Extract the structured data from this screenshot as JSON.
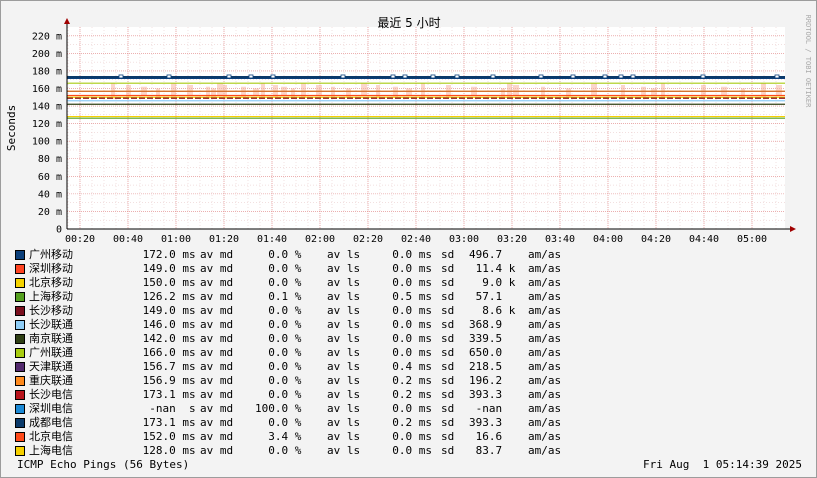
{
  "chart_data": {
    "type": "line",
    "title": "最近 5 小时",
    "ylabel": "Seconds",
    "watermark": "RRDTOOL / TOBI OETIKER",
    "ylim": [
      0,
      230
    ],
    "y_ticks": [
      {
        "v": 0,
        "label": "0"
      },
      {
        "v": 20,
        "label": "20 m"
      },
      {
        "v": 40,
        "label": "40 m"
      },
      {
        "v": 60,
        "label": "60 m"
      },
      {
        "v": 80,
        "label": "80 m"
      },
      {
        "v": 100,
        "label": "100 m"
      },
      {
        "v": 120,
        "label": "120 m"
      },
      {
        "v": 140,
        "label": "140 m"
      },
      {
        "v": 160,
        "label": "160 m"
      },
      {
        "v": 180,
        "label": "180 m"
      },
      {
        "v": 200,
        "label": "200 m"
      },
      {
        "v": 220,
        "label": "220 m"
      }
    ],
    "x_ticks": [
      "00:20",
      "00:40",
      "01:00",
      "01:20",
      "01:40",
      "02:00",
      "02:20",
      "02:40",
      "03:00",
      "03:20",
      "03:40",
      "04:00",
      "04:20",
      "04:40",
      "05:00"
    ],
    "series": [
      {
        "name": "广州移动",
        "color": "#0b3f7a",
        "value": 172.0,
        "value_str": "172.0 ms",
        "loss": "0.0 %",
        "sd": "0.0 ms",
        "am": "496.7  "
      },
      {
        "name": "深圳移动",
        "color": "#ff4422",
        "value": 149.0,
        "value_str": "149.0 ms",
        "loss": "0.0 %",
        "sd": "0.0 ms",
        "am": " 11.4 k"
      },
      {
        "name": "北京移动",
        "color": "#f5d300",
        "value": 150.0,
        "value_str": "150.0 ms",
        "loss": "0.0 %",
        "sd": "0.0 ms",
        "am": "  9.0 k"
      },
      {
        "name": "上海移动",
        "color": "#55a020",
        "value": 126.2,
        "value_str": "126.2 ms",
        "loss": "0.1 %",
        "sd": "0.5 ms",
        "am": " 57.1  "
      },
      {
        "name": "长沙移动",
        "color": "#7a0f1e",
        "value": 149.0,
        "value_str": "149.0 ms",
        "loss": "0.0 %",
        "sd": "0.0 ms",
        "am": "  8.6 k"
      },
      {
        "name": "长沙联通",
        "color": "#8fcdf6",
        "value": 146.0,
        "value_str": "146.0 ms",
        "loss": "0.0 %",
        "sd": "0.0 ms",
        "am": "368.9  "
      },
      {
        "name": "南京联通",
        "color": "#2f3f14",
        "value": 142.0,
        "value_str": "142.0 ms",
        "loss": "0.0 %",
        "sd": "0.0 ms",
        "am": "339.5  "
      },
      {
        "name": "广州联通",
        "color": "#a8cc10",
        "value": 166.0,
        "value_str": "166.0 ms",
        "loss": "0.0 %",
        "sd": "0.0 ms",
        "am": "650.0  "
      },
      {
        "name": "天津联通",
        "color": "#532a6e",
        "value": 156.7,
        "value_str": "156.7 ms",
        "loss": "0.0 %",
        "sd": "0.4 ms",
        "am": "218.5  "
      },
      {
        "name": "重庆联通",
        "color": "#ff8a1e",
        "value": 156.9,
        "value_str": "156.9 ms",
        "loss": "0.0 %",
        "sd": "0.2 ms",
        "am": "196.2  "
      },
      {
        "name": "长沙电信",
        "color": "#b8141c",
        "value": 173.1,
        "value_str": "173.1 ms",
        "loss": "0.0 %",
        "sd": "0.2 ms",
        "am": "393.3  "
      },
      {
        "name": "深圳电信",
        "color": "#1c8ad6",
        "value": null,
        "value_str": " -nan  s",
        "loss": "100.0 %",
        "sd": "0.0 ms",
        "am": " -nan  "
      },
      {
        "name": "成都电信",
        "color": "#0b3a6a",
        "value": 173.1,
        "value_str": "173.1 ms",
        "loss": "0.0 %",
        "sd": "0.2 ms",
        "am": "393.3  "
      },
      {
        "name": "北京电信",
        "color": "#ff4a1a",
        "value": 152.0,
        "value_str": "152.0 ms",
        "loss": "3.4 %",
        "sd": "0.0 ms",
        "am": " 16.6  "
      },
      {
        "name": "上海电信",
        "color": "#f6d000",
        "value": 128.0,
        "value_str": "128.0 ms",
        "loss": "0.0 %",
        "sd": "0.0 ms",
        "am": " 83.7  "
      }
    ],
    "legend_tokens": {
      "av_md": "av md",
      "av_ls": "av ls",
      "sd": "sd",
      "am_as": "am/as"
    }
  },
  "footer": {
    "left": "ICMP Echo Pings (56 Bytes)",
    "right": "Fri Aug  1 05:14:39 2025"
  }
}
